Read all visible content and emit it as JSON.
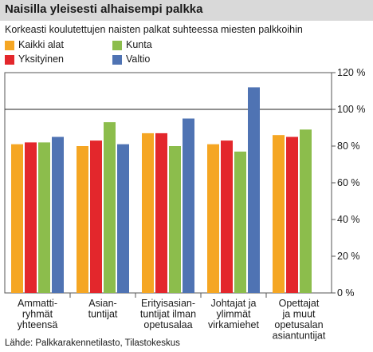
{
  "title": "Naisilla yleisesti alhaisempi palkka",
  "subtitle": "Korkeasti koulutettujen naisten palkat suhteessa miesten palkkoihin",
  "source": "Lähde: Palkkarakennetilasto, Tilastokeskus",
  "chart_data": {
    "type": "bar",
    "categories": [
      [
        "Ammatti-",
        "ryhmät",
        "yhteensä"
      ],
      [
        "Asian-",
        "tuntijat"
      ],
      [
        "Erityisasian-",
        "tuntijat ilman",
        "opetusalaa"
      ],
      [
        "Johtajat ja",
        "ylimmät",
        "virkamiehet"
      ],
      [
        "Opettajat",
        "ja muut",
        "opetusalan",
        "asiantuntijat"
      ]
    ],
    "series": [
      {
        "name": "Kaikki alat",
        "color": "#f5a623",
        "values": [
          81,
          80,
          87,
          81,
          86
        ]
      },
      {
        "name": "Yksityinen",
        "color": "#e3272c",
        "values": [
          82,
          83,
          87,
          83,
          85
        ]
      },
      {
        "name": "Kunta",
        "color": "#8cbd4c",
        "values": [
          82,
          93,
          80,
          77,
          89
        ]
      },
      {
        "name": "Valtio",
        "color": "#4f73b3",
        "values": [
          85,
          81,
          95,
          112,
          null
        ]
      }
    ],
    "ylim": [
      0,
      120
    ],
    "yticks": [
      0,
      20,
      40,
      60,
      80,
      100,
      120
    ],
    "ytick_suffix": " %",
    "reference_line": 100,
    "y_axis_side": "right",
    "legend": "top, two columns"
  }
}
